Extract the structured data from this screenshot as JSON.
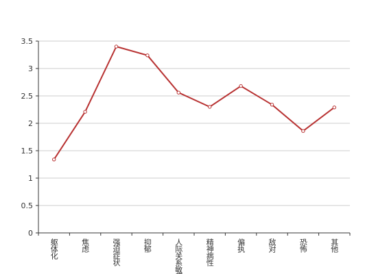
{
  "chart_data": {
    "type": "line",
    "categories": [
      "躯体化",
      "焦虑",
      "强迫症状",
      "抑郁",
      "人际关系敏感",
      "精神病性",
      "偏执",
      "敌对",
      "恐怖",
      "其他"
    ],
    "series": [
      {
        "name": null,
        "color": "#b83232",
        "values": [
          1.34,
          2.21,
          3.4,
          3.24,
          2.56,
          2.3,
          2.68,
          2.34,
          1.86,
          2.29
        ]
      }
    ],
    "ylim": [
      0,
      3.5
    ],
    "yticks": [
      0,
      0.5,
      1,
      1.5,
      2,
      2.5,
      3,
      3.5
    ],
    "grid": true
  }
}
